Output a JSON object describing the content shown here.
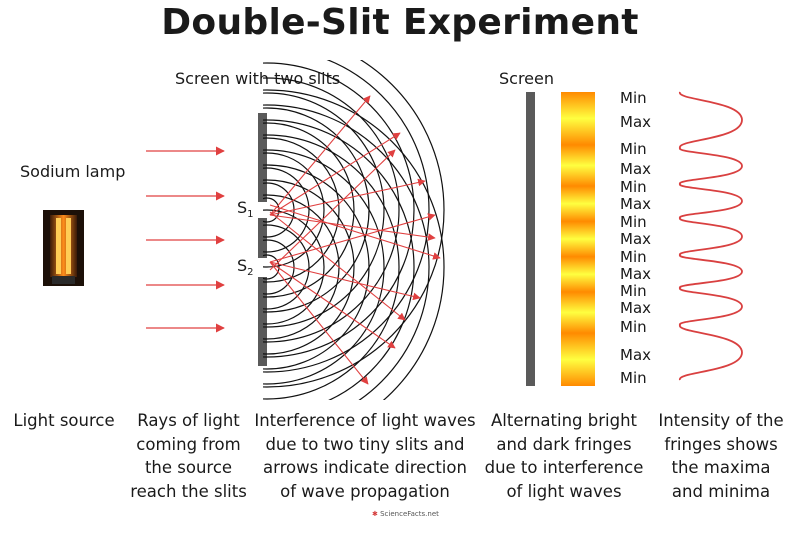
{
  "title": "Double-Slit Experiment",
  "labels": {
    "slits_screen": "Screen with two slits",
    "screen": "Screen",
    "lamp": "Sodium lamp",
    "s1": "S",
    "s1_sub": "1",
    "s2": "S",
    "s2_sub": "2"
  },
  "fringe_labels": [
    "Min",
    "Max",
    "Min",
    "Max",
    "Min",
    "Max",
    "Min",
    "Max",
    "Min",
    "Max",
    "Min",
    "Max",
    "Min",
    "Max",
    "Min"
  ],
  "captions": [
    {
      "lines": [
        "Light source"
      ]
    },
    {
      "lines": [
        "Rays of light",
        "coming from",
        "the source",
        "reach the slits"
      ]
    },
    {
      "lines": [
        "Interference of light waves",
        "due to two tiny slits and",
        "arrows indicate direction",
        "of wave propagation"
      ]
    },
    {
      "lines": [
        "Alternating bright",
        "and dark fringes",
        "due to interference",
        "of light waves"
      ]
    },
    {
      "lines": [
        "Intensity of the",
        "fringes shows",
        "the maxima",
        "and minima"
      ]
    }
  ],
  "logo": {
    "name": "ScienceFacts",
    "suffix": ".net"
  },
  "colors": {
    "ray": "#e04040",
    "wave": "#111111",
    "slit_screen": "#5a5a5a",
    "intensity": "#d94040",
    "fringe_bright": "#ffff40",
    "fringe_dark": "#ff8a00"
  }
}
